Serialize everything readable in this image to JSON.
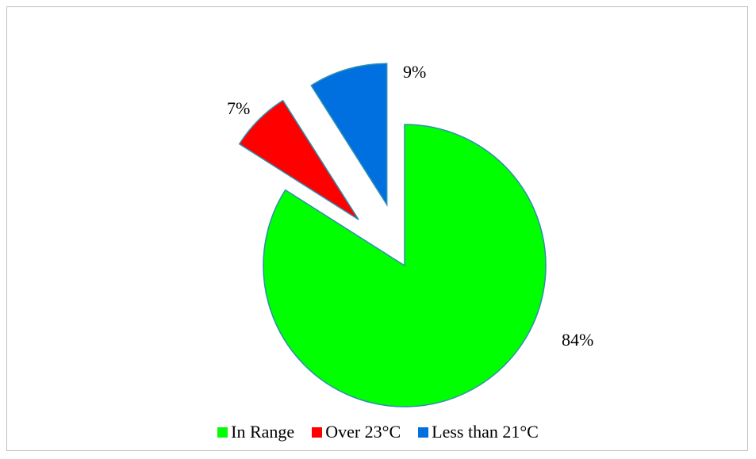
{
  "chart_data": {
    "type": "pie",
    "title": "",
    "slices": [
      {
        "name": "In Range",
        "value": 84,
        "label": "84%",
        "color": "#00ff00"
      },
      {
        "name": "Over 23°C",
        "value": 7,
        "label": "7%",
        "color": "#ff0000"
      },
      {
        "name": "Less than 21°C",
        "value": 9,
        "label": "9%",
        "color": "#0070e0"
      }
    ],
    "exploded": [
      "Over 23°C",
      "Less than 21°C"
    ],
    "legend_position": "bottom"
  }
}
